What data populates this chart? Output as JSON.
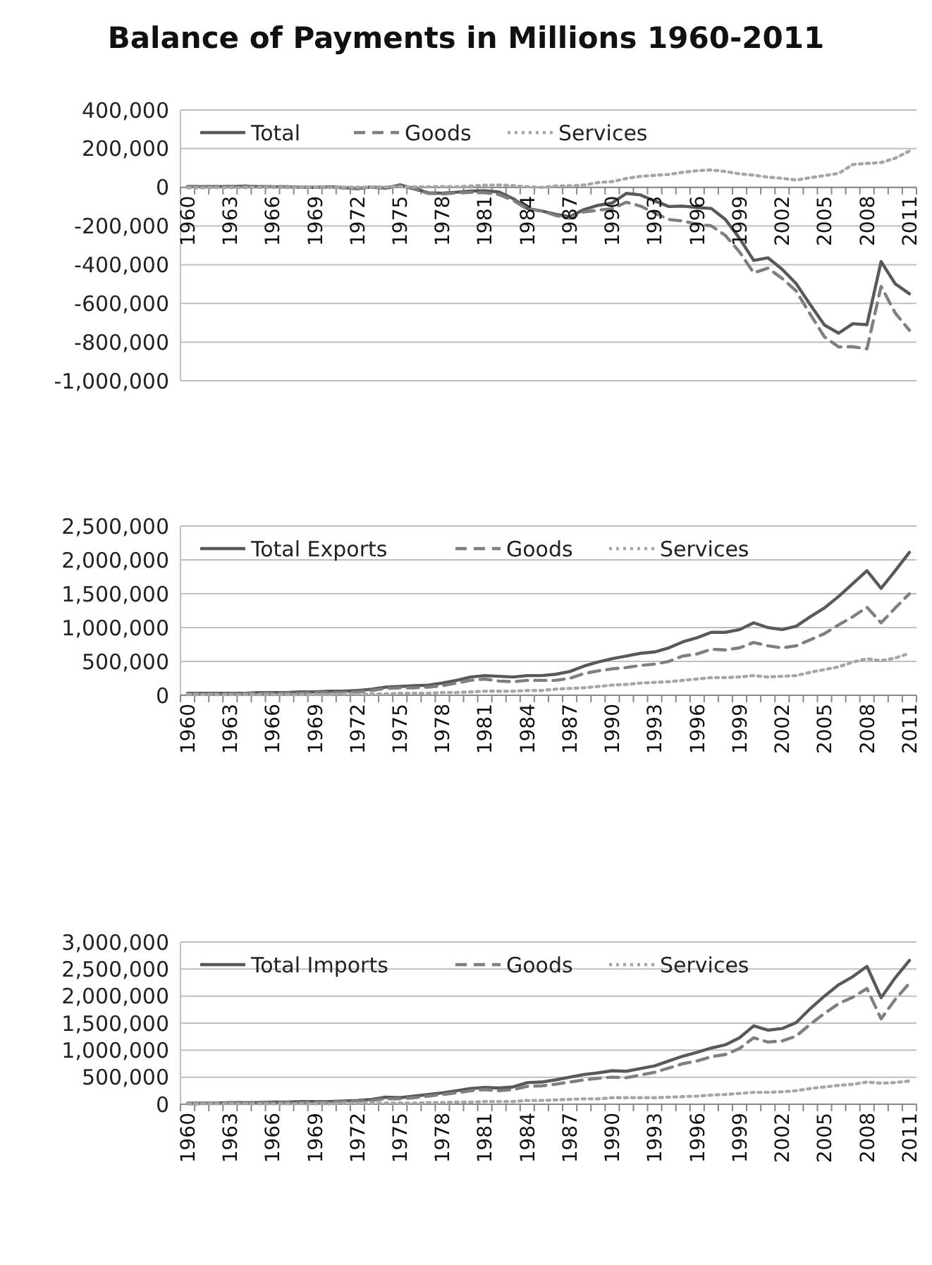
{
  "chart_data": [
    {
      "type": "line",
      "title": "Balance of Payments in Millions 1960-2011",
      "categories": [
        "1960",
        null,
        null,
        "1963",
        null,
        null,
        "1966",
        null,
        null,
        "1969",
        null,
        null,
        "1972",
        null,
        null,
        "1975",
        null,
        null,
        "1978",
        null,
        null,
        "1981",
        null,
        null,
        "1984",
        null,
        null,
        "1987",
        null,
        null,
        "1990",
        null,
        null,
        "1993",
        null,
        null,
        "1996",
        null,
        null,
        "1999",
        null,
        null,
        "2002",
        null,
        null,
        "2005",
        null,
        null,
        "2008",
        null,
        null,
        "2011"
      ],
      "series": [
        {
          "name": "Total",
          "color": "#595959",
          "line_style": "solid",
          "values": [
            4000,
            4000,
            4000,
            5000,
            6000,
            4000,
            3000,
            2000,
            1000,
            0,
            3000,
            -1000,
            -6000,
            2000,
            -4000,
            13000,
            -6000,
            -28000,
            -30000,
            -25000,
            -19000,
            -17000,
            -24000,
            -58000,
            -109000,
            -122000,
            -139000,
            -152000,
            -115000,
            -93000,
            -81000,
            -31000,
            -39000,
            -70000,
            -99000,
            -97000,
            -104000,
            -109000,
            -166000,
            -264000,
            -378000,
            -364000,
            -423000,
            -498000,
            -607000,
            -712000,
            -754000,
            -705000,
            -710000,
            -384000,
            -499000,
            -550000
          ]
        },
        {
          "name": "Goods",
          "color": "#7f7f7f",
          "line_style": "dashed",
          "values": [
            5000,
            5000,
            5000,
            5000,
            7000,
            4000,
            4000,
            4000,
            1000,
            0,
            2000,
            -3000,
            -7000,
            1000,
            -6000,
            9000,
            -9000,
            -31000,
            -34000,
            -28000,
            -26000,
            -28000,
            -37000,
            -67000,
            -112000,
            -122000,
            -145000,
            -160000,
            -127000,
            -118000,
            -111000,
            -77000,
            -97000,
            -132000,
            -166000,
            -174000,
            -191000,
            -199000,
            -249000,
            -334000,
            -442000,
            -418000,
            -470000,
            -536000,
            -657000,
            -773000,
            -825000,
            -824000,
            -835000,
            -512000,
            -650000,
            -739000
          ]
        },
        {
          "name": "Services",
          "color": "#a6a6a6",
          "line_style": "dotted",
          "values": [
            -2000,
            -2000,
            -1000,
            -1000,
            -1000,
            0,
            0,
            -1000,
            0,
            0,
            -1000,
            1000,
            1000,
            1000,
            2000,
            3000,
            3000,
            3000,
            4000,
            3000,
            7000,
            11000,
            12000,
            9000,
            3000,
            0,
            7000,
            8000,
            12000,
            25000,
            30000,
            46000,
            57000,
            62000,
            67000,
            78000,
            86000,
            90000,
            82000,
            70000,
            63000,
            53000,
            47000,
            38000,
            50000,
            61000,
            72000,
            118000,
            124000,
            128000,
            151000,
            188000
          ]
        }
      ],
      "ylim": [
        -1000000,
        400000
      ],
      "yticks": [
        {
          "value": -1000000,
          "label": "-1,000,000"
        },
        {
          "value": -800000,
          "label": "-800,000"
        },
        {
          "value": -600000,
          "label": "-600,000"
        },
        {
          "value": -400000,
          "label": "-400,000"
        },
        {
          "value": -200000,
          "label": "-200,000"
        },
        {
          "value": 0,
          "label": "0"
        },
        {
          "value": 200000,
          "label": "200,000"
        },
        {
          "value": 400000,
          "label": "400,000"
        }
      ],
      "grid": "y",
      "legend": "top",
      "marker": "none"
    },
    {
      "type": "line",
      "categories": [
        "1960",
        null,
        null,
        "1963",
        null,
        null,
        "1966",
        null,
        null,
        "1969",
        null,
        null,
        "1972",
        null,
        null,
        "1975",
        null,
        null,
        "1978",
        null,
        null,
        "1981",
        null,
        null,
        "1984",
        null,
        null,
        "1987",
        null,
        null,
        "1990",
        null,
        null,
        "1993",
        null,
        null,
        "1996",
        null,
        null,
        "1999",
        null,
        null,
        "2002",
        null,
        null,
        "2005",
        null,
        null,
        "2008",
        null,
        null,
        "2011"
      ],
      "series": [
        {
          "name": "Total Exports",
          "color": "#595959",
          "line_style": "solid",
          "values": [
            30000,
            30000,
            30000,
            30000,
            30000,
            40000,
            40000,
            40000,
            50000,
            50000,
            60000,
            60000,
            70000,
            90000,
            120000,
            130000,
            140000,
            150000,
            180000,
            220000,
            270000,
            290000,
            280000,
            270000,
            290000,
            290000,
            310000,
            350000,
            430000,
            490000,
            540000,
            580000,
            620000,
            640000,
            700000,
            790000,
            850000,
            930000,
            930000,
            970000,
            1070000,
            1000000,
            970000,
            1020000,
            1160000,
            1290000,
            1460000,
            1650000,
            1840000,
            1580000,
            1840000,
            2110000
          ]
        },
        {
          "name": "Goods",
          "color": "#7f7f7f",
          "line_style": "dashed",
          "values": [
            20000,
            20000,
            20000,
            20000,
            30000,
            30000,
            30000,
            30000,
            30000,
            40000,
            40000,
            40000,
            50000,
            70000,
            100000,
            110000,
            110000,
            120000,
            140000,
            180000,
            220000,
            240000,
            210000,
            200000,
            220000,
            220000,
            220000,
            250000,
            320000,
            360000,
            390000,
            410000,
            440000,
            460000,
            500000,
            580000,
            610000,
            680000,
            670000,
            700000,
            780000,
            730000,
            700000,
            730000,
            820000,
            910000,
            1040000,
            1160000,
            1300000,
            1070000,
            1290000,
            1500000
          ]
        },
        {
          "name": "Services",
          "color": "#a6a6a6",
          "line_style": "dotted",
          "values": [
            10000,
            10000,
            10000,
            10000,
            10000,
            10000,
            10000,
            10000,
            10000,
            10000,
            10000,
            20000,
            20000,
            20000,
            20000,
            30000,
            30000,
            30000,
            40000,
            40000,
            50000,
            60000,
            60000,
            60000,
            70000,
            70000,
            90000,
            100000,
            110000,
            130000,
            150000,
            160000,
            180000,
            190000,
            200000,
            220000,
            240000,
            260000,
            260000,
            270000,
            290000,
            270000,
            280000,
            290000,
            340000,
            380000,
            420000,
            490000,
            540000,
            510000,
            550000,
            620000
          ]
        }
      ],
      "ylim": [
        0,
        2500000
      ],
      "yticks": [
        0,
        {
          "value": 500000,
          "label": "500,000"
        },
        {
          "value": 1000000,
          "label": "1,000,000"
        },
        {
          "value": 1500000,
          "label": "1,500,000"
        },
        {
          "value": 2000000,
          "label": "2,000,000"
        },
        {
          "value": 2500000,
          "label": "2,500,000"
        }
      ],
      "grid": "y",
      "legend": "top",
      "marker": "none"
    },
    {
      "type": "line",
      "categories": [
        "1960",
        null,
        null,
        "1963",
        null,
        null,
        "1966",
        null,
        null,
        "1969",
        null,
        null,
        "1972",
        null,
        null,
        "1975",
        null,
        null,
        "1978",
        null,
        null,
        "1981",
        null,
        null,
        "1984",
        null,
        null,
        "1987",
        null,
        null,
        "1990",
        null,
        null,
        "1993",
        null,
        null,
        "1996",
        null,
        null,
        "1999",
        null,
        null,
        "2002",
        null,
        null,
        "2005",
        null,
        null,
        "2008",
        null,
        null,
        "2011"
      ],
      "series": [
        {
          "name": "Total Imports",
          "color": "#595959",
          "line_style": "solid",
          "values": [
            20000,
            20000,
            20000,
            30000,
            30000,
            30000,
            40000,
            40000,
            50000,
            50000,
            50000,
            60000,
            70000,
            90000,
            130000,
            120000,
            150000,
            180000,
            210000,
            250000,
            290000,
            310000,
            300000,
            320000,
            400000,
            410000,
            450000,
            500000,
            550000,
            580000,
            620000,
            610000,
            660000,
            710000,
            800000,
            890000,
            960000,
            1040000,
            1100000,
            1230000,
            1450000,
            1370000,
            1400000,
            1510000,
            1770000,
            2000000,
            2210000,
            2360000,
            2550000,
            1970000,
            2340000,
            2660000
          ]
        },
        {
          "name": "Goods",
          "color": "#7f7f7f",
          "line_style": "dashed",
          "values": [
            10000,
            10000,
            20000,
            20000,
            20000,
            20000,
            30000,
            30000,
            30000,
            40000,
            40000,
            50000,
            60000,
            70000,
            100000,
            100000,
            120000,
            150000,
            180000,
            210000,
            250000,
            270000,
            250000,
            270000,
            330000,
            340000,
            370000,
            410000,
            450000,
            480000,
            500000,
            490000,
            540000,
            590000,
            670000,
            750000,
            800000,
            880000,
            920000,
            1030000,
            1230000,
            1150000,
            1170000,
            1260000,
            1480000,
            1680000,
            1860000,
            1980000,
            2140000,
            1580000,
            1940000,
            2240000
          ]
        },
        {
          "name": "Services",
          "color": "#a6a6a6",
          "line_style": "dotted",
          "values": [
            10000,
            10000,
            10000,
            10000,
            10000,
            10000,
            10000,
            10000,
            10000,
            10000,
            10000,
            20000,
            20000,
            20000,
            20000,
            20000,
            20000,
            30000,
            30000,
            40000,
            40000,
            50000,
            50000,
            50000,
            70000,
            70000,
            80000,
            90000,
            100000,
            100000,
            120000,
            120000,
            120000,
            120000,
            130000,
            140000,
            150000,
            170000,
            180000,
            200000,
            220000,
            220000,
            230000,
            250000,
            290000,
            320000,
            350000,
            370000,
            410000,
            390000,
            400000,
            430000
          ]
        }
      ],
      "ylim": [
        0,
        3000000
      ],
      "yticks": [
        0,
        {
          "value": 500000,
          "label": "500,000"
        },
        {
          "value": 1000000,
          "label": "1,000,000"
        },
        {
          "value": 1500000,
          "label": "1,500,000"
        },
        {
          "value": 2000000,
          "label": "2,000,000"
        },
        {
          "value": 2500000,
          "label": "2,500,000"
        },
        {
          "value": 3000000,
          "label": "3,000,000"
        }
      ],
      "grid": "y",
      "legend": "top",
      "marker": "none"
    }
  ]
}
